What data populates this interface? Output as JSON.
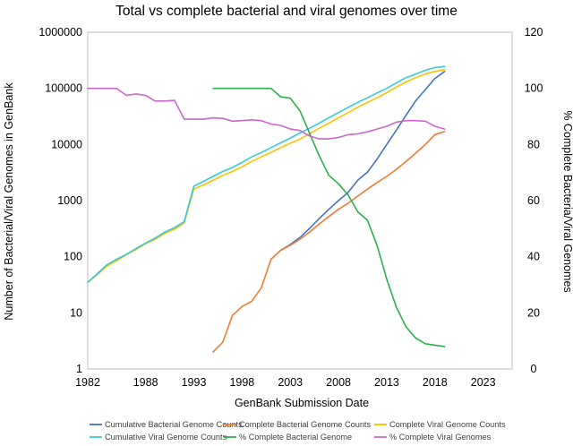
{
  "chart_data": {
    "type": "line",
    "title": "Total vs complete bacterial and viral genomes over time",
    "xlabel": "GenBank Submission Date",
    "ylabel": "Number of Bacterial/Viral Genomes in GenBank",
    "y2label": "% Complete Bacteria/Viral Genomes",
    "xlim": [
      1982,
      2026
    ],
    "x_ticks": [
      1982,
      1988,
      1993,
      1998,
      2003,
      2008,
      2013,
      2018,
      2023
    ],
    "ylim": [
      1,
      1000000
    ],
    "y_scale": "log",
    "y_ticks": [
      "1",
      "10",
      "100",
      "1000",
      "10000",
      "100000",
      "1000000"
    ],
    "y2lim": [
      0,
      120
    ],
    "y2_ticks": [
      "0",
      "20",
      "40",
      "60",
      "80",
      "100",
      "120"
    ],
    "grid": false,
    "legend_position": "bottom",
    "series": [
      {
        "name": "Cumulative Bacterial Genome Counts",
        "axis": "left",
        "color": "#4472C4",
        "x": [
          2002,
          2003,
          2004,
          2005,
          2006,
          2007,
          2008,
          2009,
          2010,
          2011,
          2012,
          2013,
          2014,
          2015,
          2016,
          2017,
          2018,
          2019
        ],
        "values": [
          130,
          165,
          220,
          320,
          480,
          700,
          1000,
          1400,
          2300,
          3200,
          5500,
          10000,
          18000,
          33000,
          60000,
          95000,
          150000,
          200000
        ]
      },
      {
        "name": "Complete Bacterial Genome Counts",
        "axis": "left",
        "color": "#ED7D31",
        "x": [
          1995,
          1996,
          1997,
          1998,
          1999,
          2000,
          2001,
          2002,
          2003,
          2004,
          2005,
          2006,
          2007,
          2008,
          2009,
          2010,
          2011,
          2012,
          2013,
          2014,
          2015,
          2016,
          2017,
          2018,
          2019
        ],
        "values": [
          2,
          3,
          9,
          13,
          16,
          28,
          90,
          130,
          160,
          205,
          275,
          380,
          520,
          700,
          900,
          1200,
          1600,
          2100,
          2700,
          3600,
          5000,
          7000,
          10000,
          15000,
          17000
        ]
      },
      {
        "name": "Complete Viral Genome Counts",
        "axis": "left",
        "color": "#FFC000",
        "x": [
          1982,
          1983,
          1984,
          1985,
          1986,
          1987,
          1988,
          1989,
          1990,
          1991,
          1992,
          1993,
          1994,
          1995,
          1996,
          1997,
          1998,
          1999,
          2000,
          2001,
          2002,
          2003,
          2004,
          2005,
          2006,
          2007,
          2008,
          2009,
          2010,
          2011,
          2012,
          2013,
          2014,
          2015,
          2016,
          2017,
          2018,
          2019
        ],
        "values": [
          35,
          48,
          68,
          85,
          108,
          135,
          170,
          205,
          260,
          310,
          400,
          1600,
          1900,
          2300,
          2800,
          3300,
          4000,
          5000,
          6000,
          7200,
          8800,
          10500,
          12500,
          15500,
          19500,
          24000,
          30000,
          37000,
          46000,
          56000,
          68000,
          84000,
          105000,
          130000,
          155000,
          180000,
          200000,
          215000
        ]
      },
      {
        "name": "Cumulative Viral Genome Counts",
        "axis": "left",
        "color": "#33CCDD",
        "x": [
          1982,
          1983,
          1984,
          1985,
          1986,
          1987,
          1988,
          1989,
          1990,
          1991,
          1992,
          1993,
          1994,
          1995,
          1996,
          1997,
          1998,
          1999,
          2000,
          2001,
          2002,
          2003,
          2004,
          2005,
          2006,
          2007,
          2008,
          2009,
          2010,
          2011,
          2012,
          2013,
          2014,
          2015,
          2016,
          2017,
          2018,
          2019
        ],
        "values": [
          35,
          50,
          72,
          90,
          110,
          140,
          175,
          215,
          275,
          330,
          420,
          1800,
          2200,
          2700,
          3300,
          3900,
          4800,
          6000,
          7200,
          8800,
          10700,
          13000,
          16000,
          19500,
          24000,
          30000,
          37000,
          46000,
          56000,
          68000,
          83000,
          100000,
          125000,
          155000,
          180000,
          210000,
          235000,
          245000
        ]
      },
      {
        "name": "% Complete Bacterial Genome",
        "axis": "right",
        "color": "#2DB04B",
        "x": [
          1995,
          1996,
          1997,
          1998,
          1999,
          2000,
          2001,
          2002,
          2003,
          2004,
          2005,
          2006,
          2007,
          2008,
          2009,
          2010,
          2011,
          2012,
          2013,
          2014,
          2015,
          2016,
          2017,
          2018,
          2019
        ],
        "values": [
          100,
          100,
          100,
          100,
          100,
          100,
          100,
          97,
          96.5,
          92,
          84,
          76,
          69,
          66,
          62,
          56,
          53,
          44,
          32,
          22,
          15,
          11,
          9,
          8.5,
          8
        ]
      },
      {
        "name": "% Complete Viral Genomes",
        "axis": "right",
        "color": "#CC66CC",
        "x": [
          1982,
          1983,
          1984,
          1985,
          1986,
          1987,
          1988,
          1989,
          1990,
          1991,
          1992,
          1993,
          1994,
          1995,
          1996,
          1997,
          1998,
          1999,
          2000,
          2001,
          2002,
          2003,
          2004,
          2005,
          2006,
          2007,
          2008,
          2009,
          2010,
          2011,
          2012,
          2013,
          2014,
          2015,
          2016,
          2017,
          2018,
          2019
        ],
        "values": [
          100,
          100,
          100,
          100,
          97.5,
          98,
          97.5,
          95.5,
          95.5,
          95.7,
          89,
          89,
          89,
          89.5,
          89.3,
          88.3,
          88.5,
          88.8,
          88.5,
          87.3,
          86.8,
          85.5,
          85,
          83,
          82,
          82,
          82.5,
          83.5,
          83.8,
          84.5,
          85.5,
          86.5,
          88,
          88.5,
          88.5,
          88.3,
          86.5,
          85.5
        ]
      }
    ]
  }
}
